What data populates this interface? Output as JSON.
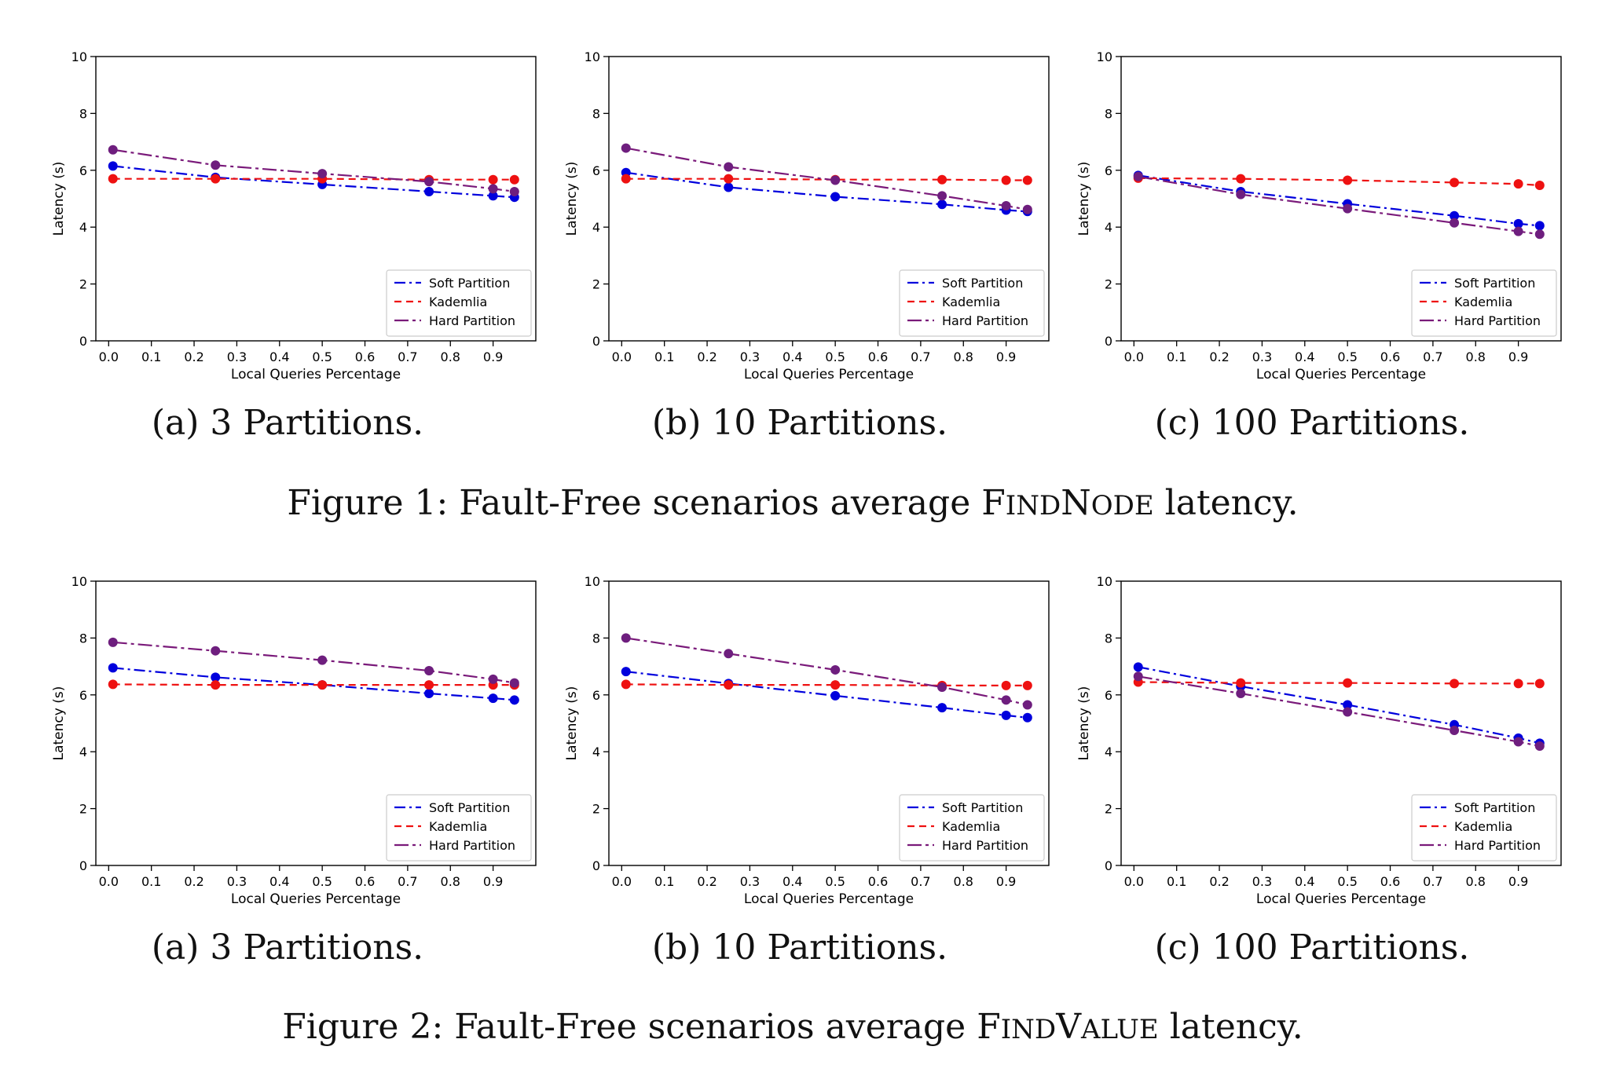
{
  "figures": [
    {
      "caption": {
        "prefix": "Figure 1: Fault-Free scenarios average ",
        "sc_first": "F",
        "sc_rest": "IND",
        "sc2_first": "N",
        "sc2_rest": "ODE",
        "suffix": " latency."
      },
      "subcaptions": [
        "(a) 3 Partitions.",
        "(b) 10 Partitions.",
        "(c) 100 Partitions."
      ]
    },
    {
      "caption": {
        "prefix": "Figure 2: Fault-Free scenarios average ",
        "sc_first": "F",
        "sc_rest": "IND",
        "sc2_first": "V",
        "sc2_rest": "ALUE",
        "suffix": " latency."
      },
      "subcaptions": [
        "(a) 3 Partitions.",
        "(b) 10 Partitions.",
        "(c) 100 Partitions."
      ]
    }
  ],
  "colors": {
    "soft": "#0000dd",
    "kademlia": "#ee1111",
    "hard": "#7a1a7a",
    "hard_marker": "#6e1e7e"
  },
  "chart_data": [
    {
      "type": "line",
      "xlabel": "Local Queries Percentage",
      "ylabel": "Latency (s)",
      "xlim": [
        -0.03,
        1.0
      ],
      "ylim": [
        0,
        10
      ],
      "xticks": [
        "0.0",
        "0.1",
        "0.2",
        "0.3",
        "0.4",
        "0.5",
        "0.6",
        "0.7",
        "0.8",
        "0.9"
      ],
      "yticks": [
        "0",
        "2",
        "4",
        "6",
        "8",
        "10"
      ],
      "legend": "lower-right",
      "x": [
        0.01,
        0.25,
        0.5,
        0.75,
        0.9,
        0.95
      ],
      "series": [
        {
          "name": "Soft Partition",
          "values": [
            6.15,
            5.75,
            5.5,
            5.25,
            5.1,
            5.05
          ]
        },
        {
          "name": "Kademlia",
          "values": [
            5.7,
            5.7,
            5.7,
            5.67,
            5.67,
            5.67
          ]
        },
        {
          "name": "Hard Partition",
          "values": [
            6.72,
            6.18,
            5.88,
            5.6,
            5.35,
            5.25
          ]
        }
      ]
    },
    {
      "type": "line",
      "xlabel": "Local Queries Percentage",
      "ylabel": "Latency (s)",
      "xlim": [
        -0.03,
        1.0
      ],
      "ylim": [
        0,
        10
      ],
      "xticks": [
        "0.0",
        "0.1",
        "0.2",
        "0.3",
        "0.4",
        "0.5",
        "0.6",
        "0.7",
        "0.8",
        "0.9"
      ],
      "yticks": [
        "0",
        "2",
        "4",
        "6",
        "8",
        "10"
      ],
      "legend": "lower-right",
      "x": [
        0.01,
        0.25,
        0.5,
        0.75,
        0.9,
        0.95
      ],
      "series": [
        {
          "name": "Soft Partition",
          "values": [
            5.92,
            5.4,
            5.07,
            4.8,
            4.6,
            4.55
          ]
        },
        {
          "name": "Kademlia",
          "values": [
            5.7,
            5.7,
            5.67,
            5.67,
            5.65,
            5.65
          ]
        },
        {
          "name": "Hard Partition",
          "values": [
            6.78,
            6.12,
            5.65,
            5.1,
            4.75,
            4.62
          ]
        }
      ]
    },
    {
      "type": "line",
      "xlabel": "Local Queries Percentage",
      "ylabel": "Latency (s)",
      "xlim": [
        -0.03,
        1.0
      ],
      "ylim": [
        0,
        10
      ],
      "xticks": [
        "0.0",
        "0.1",
        "0.2",
        "0.3",
        "0.4",
        "0.5",
        "0.6",
        "0.7",
        "0.8",
        "0.9"
      ],
      "yticks": [
        "0",
        "2",
        "4",
        "6",
        "8",
        "10"
      ],
      "legend": "lower-right",
      "x": [
        0.01,
        0.25,
        0.5,
        0.75,
        0.9,
        0.95
      ],
      "series": [
        {
          "name": "Soft Partition",
          "values": [
            5.82,
            5.25,
            4.82,
            4.4,
            4.12,
            4.05
          ]
        },
        {
          "name": "Kademlia",
          "values": [
            5.72,
            5.7,
            5.65,
            5.57,
            5.52,
            5.47
          ]
        },
        {
          "name": "Hard Partition",
          "values": [
            5.78,
            5.15,
            4.65,
            4.15,
            3.85,
            3.75
          ]
        }
      ]
    },
    {
      "type": "line",
      "xlabel": "Local Queries Percentage",
      "ylabel": "Latency (s)",
      "xlim": [
        -0.03,
        1.0
      ],
      "ylim": [
        0,
        10
      ],
      "xticks": [
        "0.0",
        "0.1",
        "0.2",
        "0.3",
        "0.4",
        "0.5",
        "0.6",
        "0.7",
        "0.8",
        "0.9"
      ],
      "yticks": [
        "0",
        "2",
        "4",
        "6",
        "8",
        "10"
      ],
      "legend": "lower-right",
      "x": [
        0.01,
        0.25,
        0.5,
        0.75,
        0.9,
        0.95
      ],
      "series": [
        {
          "name": "Soft Partition",
          "values": [
            6.95,
            6.62,
            6.35,
            6.05,
            5.88,
            5.82
          ]
        },
        {
          "name": "Kademlia",
          "values": [
            6.37,
            6.35,
            6.35,
            6.35,
            6.35,
            6.35
          ]
        },
        {
          "name": "Hard Partition",
          "values": [
            7.85,
            7.55,
            7.22,
            6.85,
            6.55,
            6.42
          ]
        }
      ]
    },
    {
      "type": "line",
      "xlabel": "Local Queries Percentage",
      "ylabel": "Latency (s)",
      "xlim": [
        -0.03,
        1.0
      ],
      "ylim": [
        0,
        10
      ],
      "xticks": [
        "0.0",
        "0.1",
        "0.2",
        "0.3",
        "0.4",
        "0.5",
        "0.6",
        "0.7",
        "0.8",
        "0.9"
      ],
      "yticks": [
        "0",
        "2",
        "4",
        "6",
        "8",
        "10"
      ],
      "legend": "lower-right",
      "x": [
        0.01,
        0.25,
        0.5,
        0.75,
        0.9,
        0.95
      ],
      "series": [
        {
          "name": "Soft Partition",
          "values": [
            6.82,
            6.4,
            5.97,
            5.55,
            5.28,
            5.2
          ]
        },
        {
          "name": "Kademlia",
          "values": [
            6.37,
            6.35,
            6.35,
            6.33,
            6.33,
            6.33
          ]
        },
        {
          "name": "Hard Partition",
          "values": [
            8.0,
            7.45,
            6.88,
            6.27,
            5.82,
            5.65
          ]
        }
      ]
    },
    {
      "type": "line",
      "xlabel": "Local Queries Percentage",
      "ylabel": "Latency (s)",
      "xlim": [
        -0.03,
        1.0
      ],
      "ylim": [
        0,
        10
      ],
      "xticks": [
        "0.0",
        "0.1",
        "0.2",
        "0.3",
        "0.4",
        "0.5",
        "0.6",
        "0.7",
        "0.8",
        "0.9"
      ],
      "yticks": [
        "0",
        "2",
        "4",
        "6",
        "8",
        "10"
      ],
      "legend": "lower-right",
      "x": [
        0.01,
        0.25,
        0.5,
        0.75,
        0.9,
        0.95
      ],
      "series": [
        {
          "name": "Soft Partition",
          "values": [
            6.98,
            6.3,
            5.65,
            4.95,
            4.48,
            4.3
          ]
        },
        {
          "name": "Kademlia",
          "values": [
            6.45,
            6.42,
            6.42,
            6.4,
            6.4,
            6.4
          ]
        },
        {
          "name": "Hard Partition",
          "values": [
            6.65,
            6.05,
            5.4,
            4.75,
            4.35,
            4.2
          ]
        }
      ]
    }
  ]
}
